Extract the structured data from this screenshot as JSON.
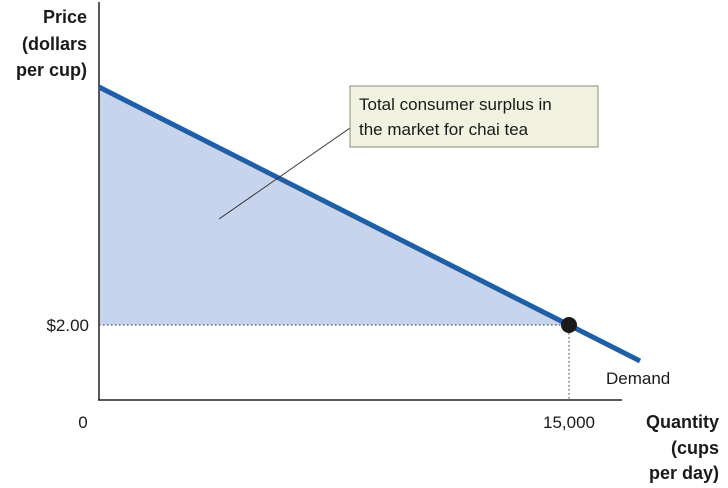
{
  "chart_data": {
    "type": "line",
    "title": "",
    "ylabel_lines": [
      "Price",
      "(dollars",
      "per cup)"
    ],
    "xlabel_lines": [
      "Quantity",
      "(cups",
      "per day)"
    ],
    "price_tick": "$2.00",
    "quantity_tick": "15,000",
    "origin_label": "0",
    "series": [
      {
        "name": "Demand",
        "color": "#1f5fa8"
      }
    ],
    "equilibrium": {
      "price": 2.0,
      "quantity": 15000
    },
    "annotation": {
      "lines": [
        "Total consumer surplus in",
        "the market for chai tea"
      ]
    },
    "shaded_area_color": "#c7d4ee",
    "grid": false
  }
}
